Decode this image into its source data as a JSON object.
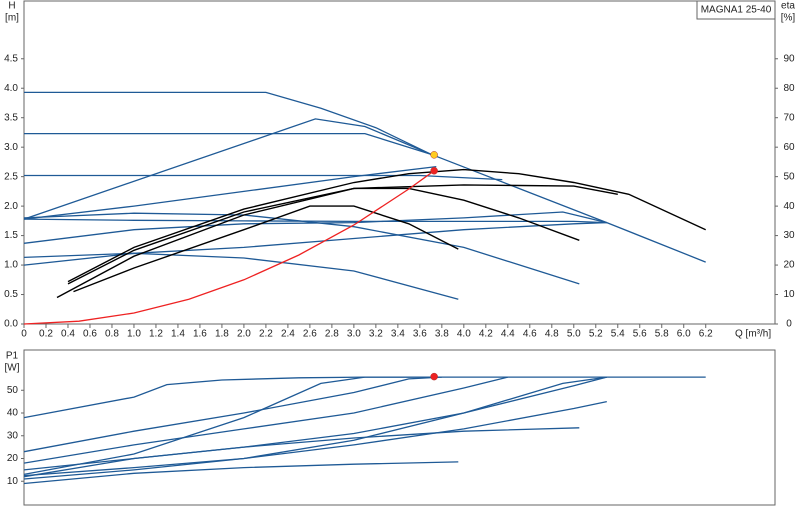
{
  "chart_data": [
    {
      "type": "line",
      "title": "MAGNA1 25-40",
      "y_label": "H",
      "y_unit": "[m]",
      "y2_label": "eta",
      "y2_unit": "[%]",
      "x_label": "Q [m³/h]",
      "xlim": [
        0,
        6.83
      ],
      "xticks": [
        0,
        0.2,
        0.4,
        0.6,
        0.8,
        {
          "value": 1,
          "label": "1.0"
        },
        1.2,
        1.4,
        1.6,
        1.8,
        {
          "value": 2,
          "label": "2.0"
        },
        2.2,
        2.4,
        2.6,
        2.8,
        {
          "value": 3,
          "label": "3.0"
        },
        3.2,
        3.4,
        3.6,
        3.8,
        {
          "value": 4,
          "label": "4.0"
        },
        4.2,
        4.4,
        4.6,
        4.8,
        {
          "value": 5,
          "label": "5.0"
        },
        5.2,
        5.4,
        5.6,
        5.8,
        {
          "value": 6,
          "label": "6.0"
        },
        6.2
      ],
      "ylim": [
        0,
        5.48
      ],
      "yticks": [
        {
          "value": 0,
          "label": "0.0"
        },
        0.5,
        {
          "value": 1,
          "label": "1.0"
        },
        1.5,
        {
          "value": 2,
          "label": "2.0"
        },
        2.5,
        {
          "value": 3,
          "label": "3.0"
        },
        3.5,
        {
          "value": 4,
          "label": "4.0"
        },
        4.5
      ],
      "y2lim": [
        0,
        109.6
      ],
      "y2ticks": [
        0,
        10,
        20,
        30,
        40,
        50,
        60,
        70,
        80,
        90
      ],
      "grid": false,
      "series": [
        {
          "color": "#1f5a96",
          "x": [
            0,
            2.2,
            2.7,
            3.2,
            3.7,
            4.5,
            5.3,
            6.2
          ],
          "values": [
            3.93,
            3.93,
            3.66,
            3.33,
            2.88,
            2.3,
            1.72,
            1.05
          ]
        },
        {
          "color": "#1f5a96",
          "x": [
            0,
            2.65,
            3.1,
            3.7
          ],
          "values": [
            1.78,
            3.48,
            3.35,
            2.88
          ]
        },
        {
          "color": "#1f5a96",
          "x": [
            0,
            3.1,
            3.7
          ],
          "values": [
            3.23,
            3.23,
            2.88
          ]
        },
        {
          "color": "#1f5a96",
          "x": [
            0,
            3.6,
            4.35
          ],
          "values": [
            2.52,
            2.52,
            2.45
          ]
        },
        {
          "color": "#1f5a96",
          "x": [
            0,
            1,
            2,
            3,
            3.75
          ],
          "values": [
            1.78,
            2.0,
            2.25,
            2.5,
            2.67
          ]
        },
        {
          "color": "#1f5a96",
          "x": [
            0,
            1,
            2,
            3,
            4,
            4.9,
            5.3
          ],
          "values": [
            1.37,
            1.6,
            1.7,
            1.72,
            1.8,
            1.9,
            1.72
          ]
        },
        {
          "color": "#1f5a96",
          "x": [
            0,
            1,
            2,
            3,
            4,
            5,
            5.3
          ],
          "values": [
            1.0,
            1.2,
            1.3,
            1.45,
            1.6,
            1.7,
            1.72
          ]
        },
        {
          "color": "#1f5a96",
          "x": [
            0,
            1,
            2,
            3,
            4,
            5,
            5.3
          ],
          "values": [
            1.78,
            1.76,
            1.75,
            1.74,
            1.74,
            1.74,
            1.72
          ]
        },
        {
          "color": "#1f5a96",
          "x": [
            0,
            1,
            2,
            3,
            3.95
          ],
          "values": [
            1.13,
            1.2,
            1.12,
            0.9,
            0.42
          ]
        },
        {
          "color": "#1f5a96",
          "x": [
            0,
            1,
            2,
            3,
            4,
            5.05
          ],
          "values": [
            1.8,
            1.88,
            1.85,
            1.65,
            1.3,
            0.68
          ]
        },
        {
          "color": "#000000",
          "x": [
            0.4,
            1,
            2,
            3,
            3.5,
            4,
            4.5,
            5,
            5.5,
            6.2
          ],
          "values": [
            0.72,
            1.3,
            1.95,
            2.4,
            2.55,
            2.62,
            2.55,
            2.4,
            2.2,
            1.6
          ]
        },
        {
          "color": "#000000",
          "x": [
            0.4,
            1,
            2,
            3,
            4,
            5,
            5.4
          ],
          "values": [
            0.68,
            1.25,
            1.9,
            2.3,
            2.36,
            2.34,
            2.2
          ]
        },
        {
          "color": "#000000",
          "x": [
            0.3,
            1,
            2,
            3,
            3.5,
            4,
            4.5,
            5.05
          ],
          "values": [
            0.45,
            1.15,
            1.85,
            2.3,
            2.3,
            2.1,
            1.8,
            1.42
          ]
        },
        {
          "color": "#000000",
          "x": [
            0.45,
            1,
            2,
            2.6,
            3,
            3.5,
            3.95
          ],
          "values": [
            0.55,
            0.95,
            1.6,
            2.0,
            2.0,
            1.7,
            1.27
          ]
        },
        {
          "color": "#ee2222",
          "x": [
            0,
            0.5,
            1,
            1.5,
            2,
            2.5,
            3,
            3.5,
            3.73
          ],
          "values": [
            0,
            0.047,
            0.187,
            0.42,
            0.75,
            1.17,
            1.68,
            2.29,
            2.6
          ]
        }
      ],
      "points": [
        {
          "x": 3.73,
          "y": 2.87,
          "color": "#ffcc22"
        },
        {
          "x": 3.73,
          "y": 2.6,
          "color": "#ee2222"
        }
      ]
    },
    {
      "type": "line",
      "y_label": "P1",
      "y_unit": "[W]",
      "xlim": [
        0,
        6.83
      ],
      "ylim": [
        0,
        67.7
      ],
      "yticks": [
        10,
        20,
        30,
        40,
        50
      ],
      "grid": false,
      "series": [
        {
          "color": "#1f5a96",
          "x": [
            0,
            1,
            1.3,
            1.8,
            2.5,
            3.1,
            3.7
          ],
          "values": [
            38,
            47,
            52.5,
            54.5,
            55.5,
            55.8,
            55.8
          ]
        },
        {
          "color": "#1f5a96",
          "x": [
            0,
            1,
            2,
            2.7,
            3.1,
            3.7,
            6.2
          ],
          "values": [
            13,
            22,
            38,
            53,
            55.8,
            55.8,
            55.8
          ]
        },
        {
          "color": "#1f5a96",
          "x": [
            0,
            1,
            2,
            3,
            3.5,
            3.8
          ],
          "values": [
            23,
            32,
            40,
            49,
            55,
            55.8
          ]
        },
        {
          "color": "#1f5a96",
          "x": [
            0,
            1,
            2,
            3,
            4,
            4.4
          ],
          "values": [
            18,
            26,
            33,
            40,
            51,
            55.8
          ]
        },
        {
          "color": "#1f5a96",
          "x": [
            0,
            1,
            2,
            3,
            4,
            4.9,
            5.3
          ],
          "values": [
            15,
            20,
            25,
            31,
            40,
            53,
            55.8
          ]
        },
        {
          "color": "#1f5a96",
          "x": [
            0,
            1,
            2,
            3,
            4,
            5,
            5.3
          ],
          "values": [
            11,
            15,
            20,
            28,
            40,
            52,
            55.8
          ]
        },
        {
          "color": "#1f5a96",
          "x": [
            0,
            1,
            2,
            3,
            4,
            5,
            5.3
          ],
          "values": [
            12.5,
            16,
            20,
            26,
            33,
            42,
            45
          ]
        },
        {
          "color": "#1f5a96",
          "x": [
            0,
            1,
            2,
            3,
            3.95
          ],
          "values": [
            9,
            13.5,
            16,
            17.5,
            18.5
          ]
        },
        {
          "color": "#1f5a96",
          "x": [
            0,
            1,
            2,
            3,
            4,
            5.05
          ],
          "values": [
            12,
            20,
            25,
            29,
            32,
            33.5
          ]
        }
      ],
      "points": [
        {
          "x": 3.73,
          "y": 56,
          "color": "#ee2222"
        }
      ]
    }
  ]
}
